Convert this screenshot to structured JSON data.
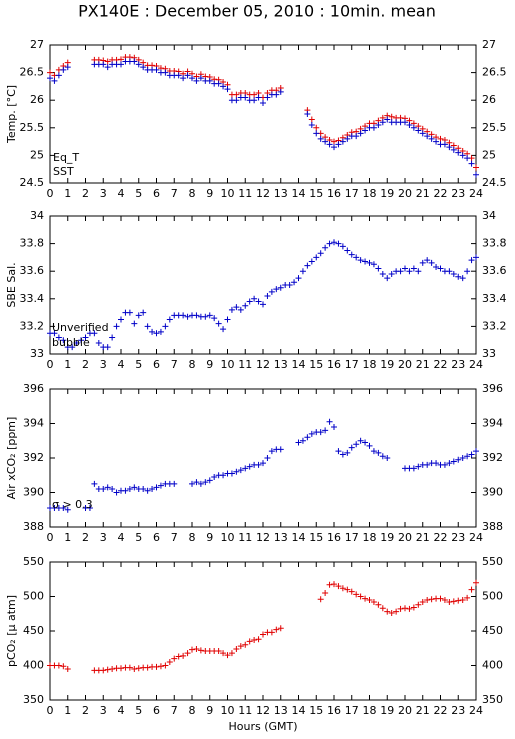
{
  "chart_data": [
    {
      "type": "scatter",
      "title": "PX140E : December 05, 2010 : 10min. mean",
      "ylabel": "Temp. [°C]",
      "x": [
        0,
        0.25,
        0.5,
        0.75,
        1,
        1.25,
        1.5,
        1.75,
        2,
        2.25,
        2.5,
        2.75,
        3,
        3.25,
        3.5,
        3.75,
        4,
        4.25,
        4.5,
        4.75,
        5,
        5.25,
        5.5,
        5.75,
        6,
        6.25,
        6.5,
        6.75,
        7,
        7.25,
        7.5,
        7.75,
        8,
        8.25,
        8.5,
        8.75,
        9,
        9.25,
        9.5,
        9.75,
        10,
        10.25,
        10.5,
        10.75,
        11,
        11.25,
        11.5,
        11.75,
        12,
        12.25,
        12.5,
        12.75,
        13,
        13.25,
        13.5,
        13.75,
        14,
        14.25,
        14.5,
        14.75,
        15,
        15.25,
        15.5,
        15.75,
        16,
        16.25,
        16.5,
        16.75,
        17,
        17.25,
        17.5,
        17.75,
        18,
        18.25,
        18.5,
        18.75,
        19,
        19.25,
        19.5,
        19.75,
        20,
        20.25,
        20.5,
        20.75,
        21,
        21.25,
        21.5,
        21.75,
        22,
        22.25,
        22.5,
        22.75,
        23,
        23.25,
        23.5,
        23.75,
        24
      ],
      "series": [
        {
          "name": "Eq_T",
          "color": "#e00000",
          "values": [
            26.5,
            26.45,
            26.55,
            26.62,
            26.68,
            null,
            null,
            null,
            null,
            null,
            26.73,
            26.73,
            26.72,
            26.7,
            26.73,
            26.73,
            26.74,
            26.78,
            26.78,
            26.77,
            26.73,
            26.68,
            26.63,
            26.63,
            26.62,
            26.58,
            26.57,
            26.53,
            26.53,
            26.52,
            26.48,
            26.52,
            26.48,
            26.43,
            26.47,
            26.43,
            26.42,
            26.38,
            26.37,
            26.33,
            26.28,
            26.1,
            26.1,
            26.13,
            26.13,
            26.1,
            26.1,
            26.13,
            26.05,
            26.13,
            26.18,
            26.18,
            26.22,
            null,
            null,
            null,
            null,
            null,
            25.82,
            25.65,
            25.5,
            25.4,
            25.33,
            25.28,
            25.25,
            25.27,
            25.32,
            25.37,
            25.42,
            25.43,
            25.48,
            25.53,
            25.58,
            25.58,
            25.63,
            25.68,
            25.72,
            25.7,
            25.68,
            25.68,
            25.67,
            25.63,
            25.58,
            25.53,
            25.48,
            25.43,
            25.38,
            25.33,
            25.3,
            25.28,
            25.23,
            25.18,
            25.13,
            25.08,
            25.03,
            24.95,
            24.78
          ]
        },
        {
          "name": "SST",
          "color": "#0000c8",
          "values": [
            26.4,
            26.35,
            26.45,
            26.55,
            26.6,
            null,
            null,
            null,
            null,
            null,
            26.65,
            26.65,
            26.65,
            26.6,
            26.65,
            26.65,
            26.65,
            26.7,
            26.7,
            26.7,
            26.65,
            26.6,
            26.55,
            26.55,
            26.55,
            26.5,
            26.5,
            26.45,
            26.45,
            26.45,
            26.4,
            26.45,
            26.4,
            26.35,
            26.4,
            26.35,
            26.35,
            26.3,
            26.3,
            26.25,
            26.2,
            26,
            26,
            26.05,
            26.05,
            26,
            26,
            26.05,
            25.95,
            26.05,
            26.1,
            26.1,
            26.15,
            null,
            null,
            null,
            null,
            null,
            25.75,
            25.55,
            25.4,
            25.3,
            25.25,
            25.2,
            25.15,
            25.2,
            25.25,
            25.3,
            25.35,
            25.35,
            25.4,
            25.45,
            25.5,
            25.5,
            25.55,
            25.6,
            25.65,
            25.6,
            25.6,
            25.6,
            25.6,
            25.55,
            25.5,
            25.45,
            25.4,
            25.35,
            25.3,
            25.25,
            25.2,
            25.2,
            25.15,
            25.1,
            25.05,
            25,
            24.95,
            24.85,
            24.65
          ]
        }
      ],
      "xlim": [
        0,
        24
      ],
      "xticks": [
        0,
        1,
        2,
        3,
        4,
        5,
        6,
        7,
        8,
        9,
        10,
        11,
        12,
        13,
        14,
        15,
        16,
        17,
        18,
        19,
        20,
        21,
        22,
        23,
        24
      ],
      "ylim": [
        24.5,
        27
      ],
      "yticks": [
        24.5,
        25,
        25.5,
        26,
        26.5,
        27
      ],
      "legend": "lower left"
    },
    {
      "type": "scatter",
      "ylabel": "SBE Sal.",
      "x": [
        0,
        0.25,
        0.5,
        0.75,
        1,
        1.25,
        1.5,
        1.75,
        2,
        2.25,
        2.5,
        2.75,
        3,
        3.25,
        3.5,
        3.75,
        4,
        4.25,
        4.5,
        4.75,
        5,
        5.25,
        5.5,
        5.75,
        6,
        6.25,
        6.5,
        6.75,
        7,
        7.25,
        7.5,
        7.75,
        8,
        8.25,
        8.5,
        8.75,
        9,
        9.25,
        9.5,
        9.75,
        10,
        10.25,
        10.5,
        10.75,
        11,
        11.25,
        11.5,
        11.75,
        12,
        12.25,
        12.5,
        12.75,
        13,
        13.25,
        13.5,
        13.75,
        14,
        14.25,
        14.5,
        14.75,
        15,
        15.25,
        15.5,
        15.75,
        16,
        16.25,
        16.5,
        16.75,
        17,
        17.25,
        17.5,
        17.75,
        18,
        18.25,
        18.5,
        18.75,
        19,
        19.25,
        19.5,
        19.75,
        20,
        20.25,
        20.5,
        20.75,
        21,
        21.25,
        21.5,
        21.75,
        22,
        22.25,
        22.5,
        22.75,
        23,
        23.25,
        23.5,
        23.75,
        24
      ],
      "series": [
        {
          "color": "#0000c8",
          "values": [
            33.15,
            33.15,
            33.12,
            33.1,
            33.05,
            33.05,
            33.08,
            33.1,
            33.12,
            33.15,
            33.15,
            33.08,
            33.05,
            33.05,
            33.12,
            33.2,
            33.25,
            33.3,
            33.3,
            33.22,
            33.28,
            33.3,
            33.2,
            33.16,
            33.15,
            33.16,
            33.2,
            33.25,
            33.28,
            33.28,
            33.28,
            33.27,
            33.28,
            33.28,
            33.27,
            33.27,
            33.28,
            33.26,
            33.22,
            33.18,
            33.25,
            33.32,
            33.34,
            33.32,
            33.35,
            33.38,
            33.4,
            33.38,
            33.36,
            33.42,
            33.45,
            33.47,
            33.48,
            33.5,
            33.5,
            33.52,
            33.55,
            33.6,
            33.64,
            33.67,
            33.7,
            33.73,
            33.77,
            33.8,
            33.81,
            33.8,
            33.78,
            33.75,
            33.72,
            33.7,
            33.68,
            33.67,
            33.66,
            33.65,
            33.62,
            33.58,
            33.55,
            33.58,
            33.6,
            33.6,
            33.62,
            33.6,
            33.62,
            33.6,
            33.66,
            33.68,
            33.66,
            33.63,
            33.62,
            33.6,
            33.6,
            33.58,
            33.56,
            33.55,
            33.6,
            33.68,
            33.7
          ]
        }
      ],
      "annotations": [
        {
          "text": "Unverified",
          "color": "#000080"
        },
        {
          "text": "bubble",
          "color": "#c000c0"
        }
      ],
      "xlim": [
        0,
        24
      ],
      "xticks": [
        0,
        1,
        2,
        3,
        4,
        5,
        6,
        7,
        8,
        9,
        10,
        11,
        12,
        13,
        14,
        15,
        16,
        17,
        18,
        19,
        20,
        21,
        22,
        23,
        24
      ],
      "ylim": [
        33,
        34
      ],
      "yticks": [
        33,
        33.2,
        33.4,
        33.6,
        33.8,
        34
      ]
    },
    {
      "type": "scatter",
      "ylabel": "Air xCO₂ [ppm]",
      "x": [
        0,
        0.25,
        0.5,
        0.75,
        1,
        1.25,
        1.5,
        1.75,
        2,
        2.25,
        2.5,
        2.75,
        3,
        3.25,
        3.5,
        3.75,
        4,
        4.25,
        4.5,
        4.75,
        5,
        5.25,
        5.5,
        5.75,
        6,
        6.25,
        6.5,
        6.75,
        7,
        7.25,
        7.5,
        7.75,
        8,
        8.25,
        8.5,
        8.75,
        9,
        9.25,
        9.5,
        9.75,
        10,
        10.25,
        10.5,
        10.75,
        11,
        11.25,
        11.5,
        11.75,
        12,
        12.25,
        12.5,
        12.75,
        13,
        13.25,
        13.5,
        13.75,
        14,
        14.25,
        14.5,
        14.75,
        15,
        15.25,
        15.5,
        15.75,
        16,
        16.25,
        16.5,
        16.75,
        17,
        17.25,
        17.5,
        17.75,
        18,
        18.25,
        18.5,
        18.75,
        19,
        19.25,
        19.5,
        19.75,
        20,
        20.25,
        20.5,
        20.75,
        21,
        21.25,
        21.5,
        21.75,
        22,
        22.25,
        22.5,
        22.75,
        23,
        23.25,
        23.5,
        23.75,
        24
      ],
      "series": [
        {
          "color": "#0000c8",
          "values": [
            389.1,
            389.1,
            389.1,
            389.1,
            389,
            null,
            null,
            null,
            389.1,
            389.1,
            390.5,
            390.2,
            390.2,
            390.3,
            390.2,
            390,
            390.1,
            390.1,
            390.2,
            390.3,
            390.2,
            390.2,
            390.1,
            390.2,
            390.3,
            390.4,
            390.5,
            390.5,
            390.5,
            null,
            null,
            null,
            390.5,
            390.6,
            390.5,
            390.6,
            390.7,
            390.9,
            391,
            391,
            391.1,
            391.1,
            391.2,
            391.3,
            391.4,
            391.5,
            391.6,
            391.6,
            391.7,
            392,
            392.4,
            392.5,
            392.5,
            null,
            null,
            null,
            392.9,
            393,
            393.2,
            393.4,
            393.5,
            393.5,
            393.6,
            394.1,
            393.8,
            392.4,
            392.2,
            392.3,
            392.6,
            392.8,
            393,
            392.9,
            392.7,
            392.4,
            392.3,
            392.1,
            392,
            null,
            null,
            null,
            391.4,
            391.4,
            391.4,
            391.5,
            391.6,
            391.6,
            391.7,
            391.7,
            391.6,
            391.6,
            391.7,
            391.8,
            391.9,
            392,
            392.1,
            392.2,
            392.4
          ]
        }
      ],
      "annotations": [
        {
          "text": "σ > 0.3",
          "color": "#c000c0"
        }
      ],
      "xlim": [
        0,
        24
      ],
      "xticks": [
        0,
        1,
        2,
        3,
        4,
        5,
        6,
        7,
        8,
        9,
        10,
        11,
        12,
        13,
        14,
        15,
        16,
        17,
        18,
        19,
        20,
        21,
        22,
        23,
        24
      ],
      "ylim": [
        388,
        396
      ],
      "yticks": [
        388,
        390,
        392,
        394,
        396
      ]
    },
    {
      "type": "scatter",
      "ylabel": "pCO₂ [μ atm]",
      "xlabel": "Hours (GMT)",
      "x": [
        0,
        0.25,
        0.5,
        0.75,
        1,
        1.25,
        1.5,
        1.75,
        2,
        2.25,
        2.5,
        2.75,
        3,
        3.25,
        3.5,
        3.75,
        4,
        4.25,
        4.5,
        4.75,
        5,
        5.25,
        5.5,
        5.75,
        6,
        6.25,
        6.5,
        6.75,
        7,
        7.25,
        7.5,
        7.75,
        8,
        8.25,
        8.5,
        8.75,
        9,
        9.25,
        9.5,
        9.75,
        10,
        10.25,
        10.5,
        10.75,
        11,
        11.25,
        11.5,
        11.75,
        12,
        12.25,
        12.5,
        12.75,
        13,
        13.25,
        13.5,
        13.75,
        14,
        14.25,
        14.5,
        14.75,
        15,
        15.25,
        15.5,
        15.75,
        16,
        16.25,
        16.5,
        16.75,
        17,
        17.25,
        17.5,
        17.75,
        18,
        18.25,
        18.5,
        18.75,
        19,
        19.25,
        19.5,
        19.75,
        20,
        20.25,
        20.5,
        20.75,
        21,
        21.25,
        21.5,
        21.75,
        22,
        22.25,
        22.5,
        22.75,
        23,
        23.25,
        23.5,
        23.75,
        24
      ],
      "series": [
        {
          "color": "#e00000",
          "values": [
            400,
            400,
            400,
            399,
            395,
            null,
            null,
            null,
            null,
            null,
            393,
            393,
            393,
            394,
            395,
            396,
            396,
            397,
            397,
            395,
            396,
            397,
            397,
            398,
            398,
            399,
            400,
            405,
            410,
            413,
            414,
            418,
            423,
            424,
            422,
            421,
            421,
            421,
            421,
            418,
            415,
            418,
            424,
            428,
            430,
            435,
            437,
            438,
            445,
            448,
            448,
            452,
            454,
            null,
            null,
            null,
            null,
            null,
            null,
            null,
            null,
            496,
            505,
            517,
            518,
            515,
            512,
            510,
            507,
            503,
            500,
            497,
            495,
            492,
            488,
            483,
            478,
            476,
            478,
            482,
            483,
            482,
            484,
            488,
            492,
            495,
            496,
            497,
            497,
            495,
            492,
            493,
            494,
            495,
            498,
            510,
            520
          ]
        }
      ],
      "xlim": [
        0,
        24
      ],
      "xticks": [
        0,
        1,
        2,
        3,
        4,
        5,
        6,
        7,
        8,
        9,
        10,
        11,
        12,
        13,
        14,
        15,
        16,
        17,
        18,
        19,
        20,
        21,
        22,
        23,
        24
      ],
      "ylim": [
        350,
        550
      ],
      "yticks": [
        350,
        400,
        450,
        500,
        550
      ]
    }
  ]
}
